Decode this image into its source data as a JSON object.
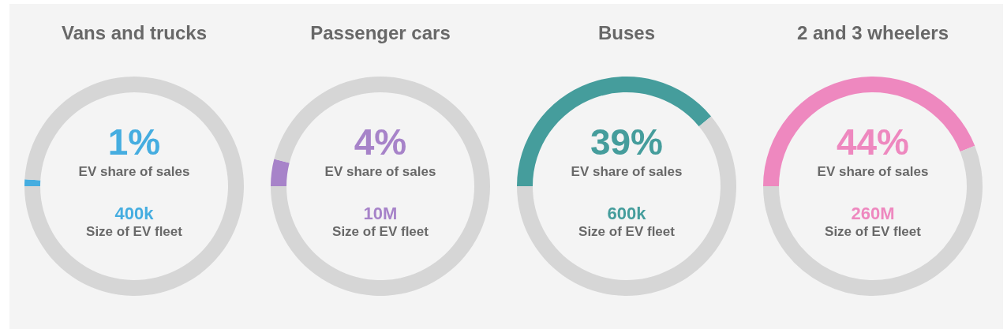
{
  "chart_data": [
    {
      "type": "donut",
      "title": "Vans and trucks",
      "categories": [
        null,
        null
      ],
      "values": [
        1,
        99
      ],
      "colors": [
        "#45ade0",
        "#d6d6d6"
      ],
      "annotations": [
        "1%",
        "EV share of sales",
        "400k",
        "Size of EV fleet"
      ]
    },
    {
      "type": "donut",
      "title": "Passenger cars",
      "categories": [
        null,
        null
      ],
      "values": [
        4,
        96
      ],
      "colors": [
        "#a783c9",
        "#d6d6d6"
      ],
      "annotations": [
        "4%",
        "EV share of sales",
        "10M",
        "Size of EV fleet"
      ]
    },
    {
      "type": "donut",
      "title": "Buses",
      "categories": [
        null,
        null
      ],
      "values": [
        39,
        61
      ],
      "colors": [
        "#459d9c",
        "#d6d6d6"
      ],
      "annotations": [
        "39%",
        "EV share of sales",
        "600k",
        "Size of EV fleet"
      ]
    },
    {
      "type": "donut",
      "title": "2 and 3 wheelers",
      "categories": [
        null,
        null
      ],
      "values": [
        44,
        56
      ],
      "colors": [
        "#ee88bf",
        "#d6d6d6"
      ],
      "annotations": [
        "44%",
        "EV share of sales",
        "260M",
        "Size of EV fleet"
      ]
    }
  ]
}
